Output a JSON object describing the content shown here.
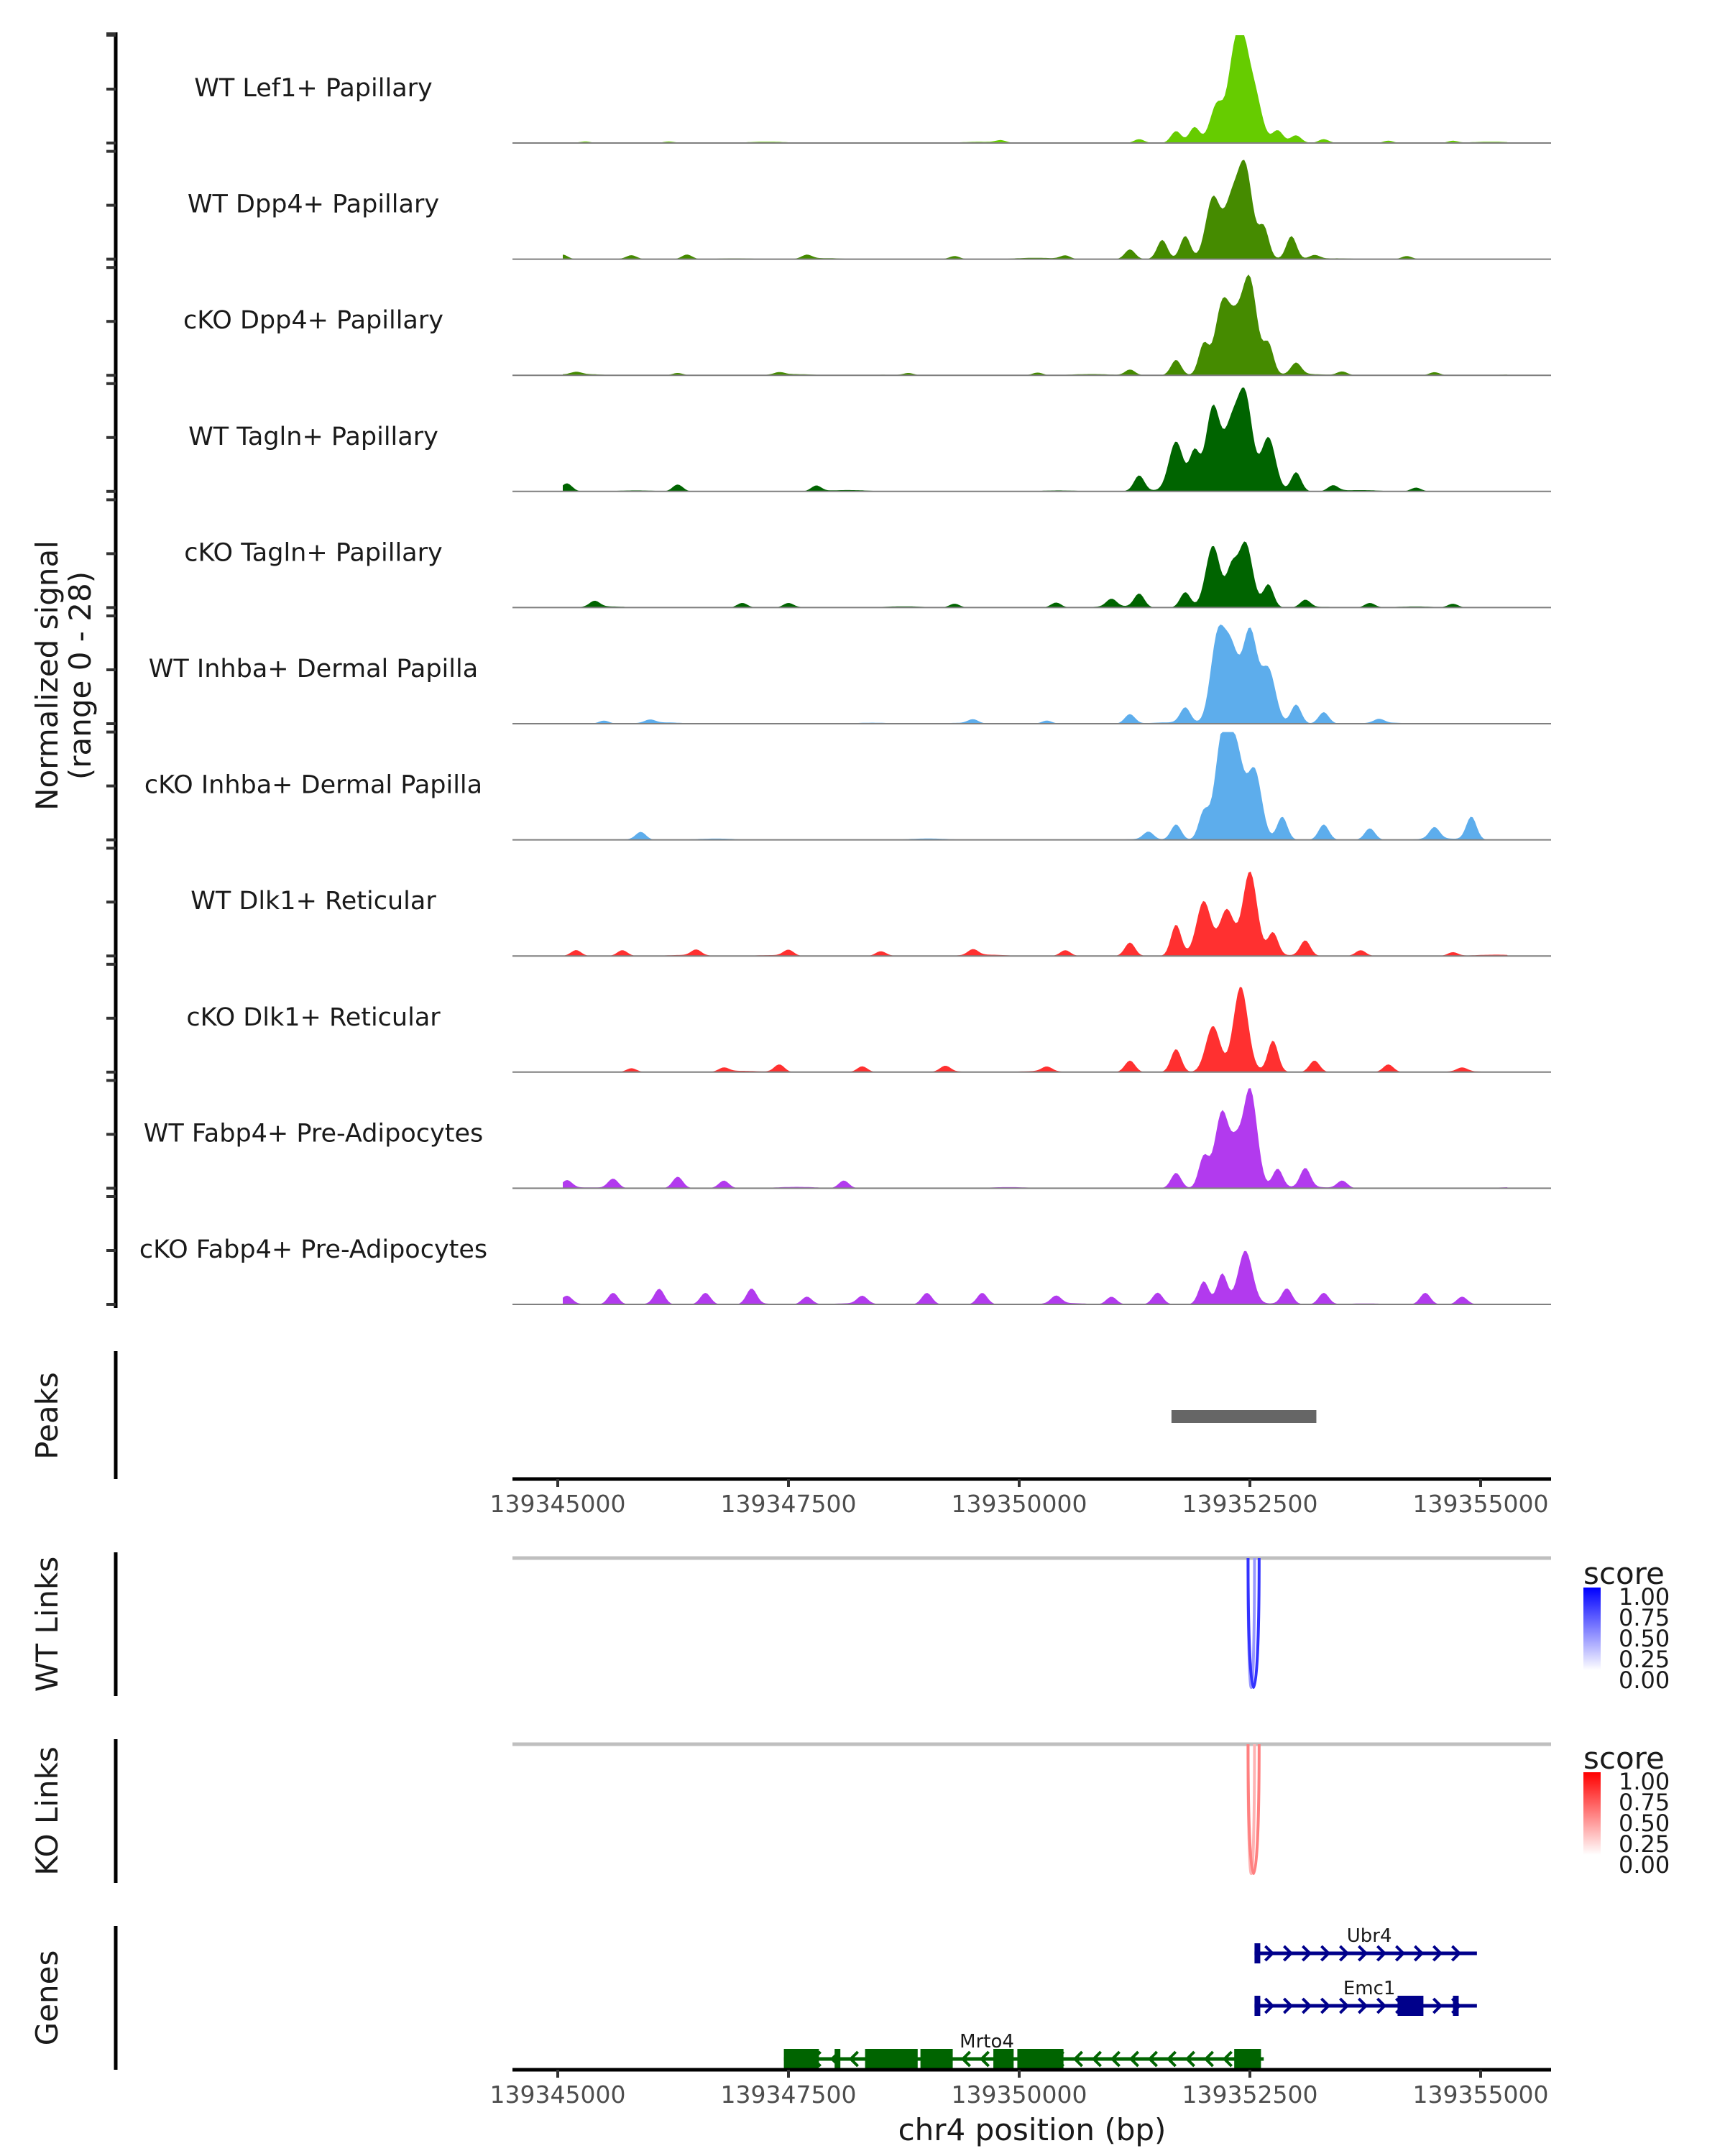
{
  "chart_data": {
    "type": "area",
    "title": "",
    "chromosome": "chr4",
    "xlabel": "chr4 position (bp)",
    "ylabel": "Normalized signal\n(range 0 - 28)",
    "ylabel_lines": [
      "Normalized signal",
      "(range 0 - 28)"
    ],
    "xlim": [
      139344700,
      139356000
    ],
    "ylim": [
      0,
      28
    ],
    "x_ticks": [
      139345000,
      139347500,
      139350000,
      139352500,
      139355000
    ],
    "x_tick_labels": [
      "139345000",
      "139347500",
      "139350000",
      "139352500",
      "139355000"
    ],
    "coverage_tracks": [
      {
        "name": "WT Lef1+ Papillary",
        "color": "#66CC00",
        "peaks": [
          [
            139345300,
            0.4
          ],
          [
            139346200,
            0.3
          ],
          [
            139349800,
            0.6
          ],
          [
            139351300,
            1.0
          ],
          [
            139351700,
            3.0
          ],
          [
            139351900,
            4.0
          ],
          [
            139352150,
            10.5
          ],
          [
            139352300,
            9.0
          ],
          [
            139352400,
            27.0
          ],
          [
            139352550,
            12.0
          ],
          [
            139352800,
            3.0
          ],
          [
            139353000,
            1.8
          ],
          [
            139353300,
            1.0
          ],
          [
            139354000,
            0.6
          ],
          [
            139354700,
            0.6
          ]
        ]
      },
      {
        "name": "WT Dpp4+ Papillary",
        "color": "#458B00",
        "peaks": [
          [
            139345050,
            1.2
          ],
          [
            139345800,
            1.0
          ],
          [
            139346400,
            1.2
          ],
          [
            139347700,
            1.0
          ],
          [
            139349300,
            0.8
          ],
          [
            139350500,
            0.9
          ],
          [
            139351200,
            2.5
          ],
          [
            139351550,
            5.0
          ],
          [
            139351800,
            6.0
          ],
          [
            139352100,
            16.0
          ],
          [
            139352300,
            14.0
          ],
          [
            139352450,
            23.0
          ],
          [
            139352650,
            8.0
          ],
          [
            139352950,
            6.0
          ],
          [
            139353200,
            1.0
          ],
          [
            139354200,
            0.8
          ]
        ]
      },
      {
        "name": "cKO Dpp4+ Papillary",
        "color": "#458B00",
        "peaks": [
          [
            139345200,
            0.6
          ],
          [
            139346300,
            0.6
          ],
          [
            139347400,
            0.6
          ],
          [
            139348800,
            0.6
          ],
          [
            139350200,
            0.7
          ],
          [
            139351200,
            1.5
          ],
          [
            139351700,
            4.0
          ],
          [
            139352000,
            8.0
          ],
          [
            139352200,
            18.0
          ],
          [
            139352350,
            12.0
          ],
          [
            139352500,
            24.0
          ],
          [
            139352700,
            8.0
          ],
          [
            139353000,
            3.0
          ],
          [
            139353500,
            1.0
          ],
          [
            139354500,
            0.8
          ]
        ]
      },
      {
        "name": "WT Tagln+ Papillary",
        "color": "#006400",
        "peaks": [
          [
            139345100,
            2.0
          ],
          [
            139346300,
            1.8
          ],
          [
            139347800,
            1.5
          ],
          [
            139351300,
            4.0
          ],
          [
            139351700,
            13.0
          ],
          [
            139351900,
            10.0
          ],
          [
            139352100,
            22.0
          ],
          [
            139352300,
            16.0
          ],
          [
            139352450,
            24.0
          ],
          [
            139352700,
            14.0
          ],
          [
            139353000,
            5.0
          ],
          [
            139353400,
            1.5
          ],
          [
            139354300,
            1.0
          ]
        ]
      },
      {
        "name": "cKO Tagln+ Papillary",
        "color": "#006400",
        "peaks": [
          [
            139345400,
            1.5
          ],
          [
            139347000,
            1.2
          ],
          [
            139347500,
            1.2
          ],
          [
            139349300,
            1.0
          ],
          [
            139350400,
            1.3
          ],
          [
            139351000,
            2.0
          ],
          [
            139351300,
            3.5
          ],
          [
            139351800,
            4.0
          ],
          [
            139352100,
            16.0
          ],
          [
            139352300,
            9.0
          ],
          [
            139352450,
            17.0
          ],
          [
            139352700,
            6.0
          ],
          [
            139353100,
            2.0
          ],
          [
            139353800,
            1.2
          ],
          [
            139354700,
            1.0
          ]
        ]
      },
      {
        "name": "WT Inhba+ Dermal Papilla",
        "color": "#5DADEC",
        "peaks": [
          [
            139345500,
            0.8
          ],
          [
            139346000,
            0.8
          ],
          [
            139349500,
            1.0
          ],
          [
            139350300,
            0.8
          ],
          [
            139351200,
            2.5
          ],
          [
            139351800,
            4.0
          ],
          [
            139352150,
            22.0
          ],
          [
            139352300,
            18.0
          ],
          [
            139352500,
            24.0
          ],
          [
            139352700,
            14.0
          ],
          [
            139353000,
            5.0
          ],
          [
            139353300,
            3.0
          ],
          [
            139353900,
            1.0
          ]
        ]
      },
      {
        "name": "cKO Inhba+ Dermal Papilla",
        "color": "#5DADEC",
        "peaks": [
          [
            139345900,
            2.0
          ],
          [
            139351400,
            2.0
          ],
          [
            139351700,
            4.0
          ],
          [
            139352000,
            7.0
          ],
          [
            139352200,
            26.0
          ],
          [
            139352350,
            22.0
          ],
          [
            139352550,
            18.0
          ],
          [
            139352850,
            6.0
          ],
          [
            139353300,
            4.0
          ],
          [
            139353800,
            3.0
          ],
          [
            139354500,
            3.0
          ],
          [
            139354900,
            6.0
          ]
        ]
      },
      {
        "name": "WT Dlk1+ Reticular",
        "color": "#FF3030",
        "peaks": [
          [
            139345200,
            1.5
          ],
          [
            139345700,
            1.5
          ],
          [
            139346500,
            1.5
          ],
          [
            139347500,
            1.5
          ],
          [
            139348500,
            1.2
          ],
          [
            139349500,
            1.5
          ],
          [
            139350500,
            1.5
          ],
          [
            139351200,
            3.5
          ],
          [
            139351700,
            8.0
          ],
          [
            139352000,
            14.0
          ],
          [
            139352250,
            12.0
          ],
          [
            139352500,
            22.0
          ],
          [
            139352750,
            6.0
          ],
          [
            139353100,
            4.0
          ],
          [
            139353700,
            1.5
          ],
          [
            139354700,
            1.0
          ]
        ]
      },
      {
        "name": "cKO Dlk1+ Reticular",
        "color": "#FF3030",
        "peaks": [
          [
            139345800,
            1.0
          ],
          [
            139346800,
            1.0
          ],
          [
            139347400,
            2.0
          ],
          [
            139348300,
            1.5
          ],
          [
            139349200,
            1.5
          ],
          [
            139350300,
            1.2
          ],
          [
            139351200,
            3.0
          ],
          [
            139351700,
            6.0
          ],
          [
            139352100,
            12.0
          ],
          [
            139352400,
            22.0
          ],
          [
            139352750,
            8.0
          ],
          [
            139353200,
            3.0
          ],
          [
            139354000,
            2.0
          ],
          [
            139354800,
            1.0
          ]
        ]
      },
      {
        "name": "WT Fabp4+ Pre-Adipocytes",
        "color": "#B23AEE",
        "peaks": [
          [
            139345100,
            2.0
          ],
          [
            139345600,
            2.5
          ],
          [
            139346300,
            3.0
          ],
          [
            139346800,
            2.0
          ],
          [
            139348100,
            2.0
          ],
          [
            139351700,
            4.0
          ],
          [
            139352000,
            8.0
          ],
          [
            139352200,
            20.0
          ],
          [
            139352350,
            8.0
          ],
          [
            139352500,
            26.0
          ],
          [
            139352800,
            5.0
          ],
          [
            139353100,
            5.0
          ],
          [
            139353500,
            2.0
          ]
        ]
      },
      {
        "name": "cKO Fabp4+ Pre-Adipocytes",
        "color": "#B23AEE",
        "peaks": [
          [
            139345100,
            2.0
          ],
          [
            139345600,
            3.0
          ],
          [
            139346100,
            4.0
          ],
          [
            139346600,
            3.0
          ],
          [
            139347100,
            4.0
          ],
          [
            139347700,
            2.0
          ],
          [
            139348300,
            2.0
          ],
          [
            139349000,
            3.0
          ],
          [
            139349600,
            3.0
          ],
          [
            139350400,
            2.0
          ],
          [
            139351000,
            2.0
          ],
          [
            139351500,
            3.0
          ],
          [
            139352000,
            6.0
          ],
          [
            139352200,
            8.0
          ],
          [
            139352450,
            14.0
          ],
          [
            139352900,
            4.0
          ],
          [
            139353300,
            3.0
          ],
          [
            139354400,
            3.0
          ],
          [
            139354800,
            2.0
          ]
        ]
      }
    ],
    "peaks_track": {
      "title": "Peaks",
      "regions": [
        [
          139351650,
          139353220
        ]
      ],
      "color": "#666666"
    },
    "link_tracks": [
      {
        "title": "WT Links",
        "legend_title": "score",
        "low_color": "#FFFFFF",
        "high_color": "#0000FF",
        "links": [
          {
            "start": 139352480,
            "end": 139352550,
            "score": 0.4
          },
          {
            "start": 139352480,
            "end": 139352600,
            "score": 0.8
          }
        ]
      },
      {
        "title": "KO Links",
        "legend_title": "score",
        "low_color": "#FFFFFF",
        "high_color": "#FF0000",
        "links": [
          {
            "start": 139352480,
            "end": 139352550,
            "score": 0.3
          },
          {
            "start": 139352480,
            "end": 139352600,
            "score": 0.5
          }
        ]
      }
    ],
    "legend_ticks": [
      "1.00",
      "0.75",
      "0.50",
      "0.25",
      "0.00"
    ],
    "genes_track": {
      "title": "Genes",
      "genes": [
        {
          "name": "Ubr4",
          "strand": "+",
          "start": 139352550,
          "end": 139354960,
          "color": "#00008B",
          "exons": [
            [
              139352550,
              139352600
            ]
          ]
        },
        {
          "name": "Emc1",
          "strand": "+",
          "start": 139352550,
          "end": 139354960,
          "color": "#00008B",
          "exons": [
            [
              139352550,
              139352600
            ],
            [
              139354100,
              139354380
            ],
            [
              139354700,
              139354720
            ]
          ]
        },
        {
          "name": "Mrto4",
          "strand": "-",
          "start": 139347450,
          "end": 139352650,
          "color": "#006400",
          "exons": [
            [
              139347450,
              139347830
            ],
            [
              139348000,
              139348050
            ],
            [
              139348330,
              139348900
            ],
            [
              139348930,
              139349280
            ],
            [
              139349720,
              139349940
            ],
            [
              139349980,
              139350480
            ],
            [
              139352330,
              139352620
            ]
          ]
        }
      ]
    }
  }
}
